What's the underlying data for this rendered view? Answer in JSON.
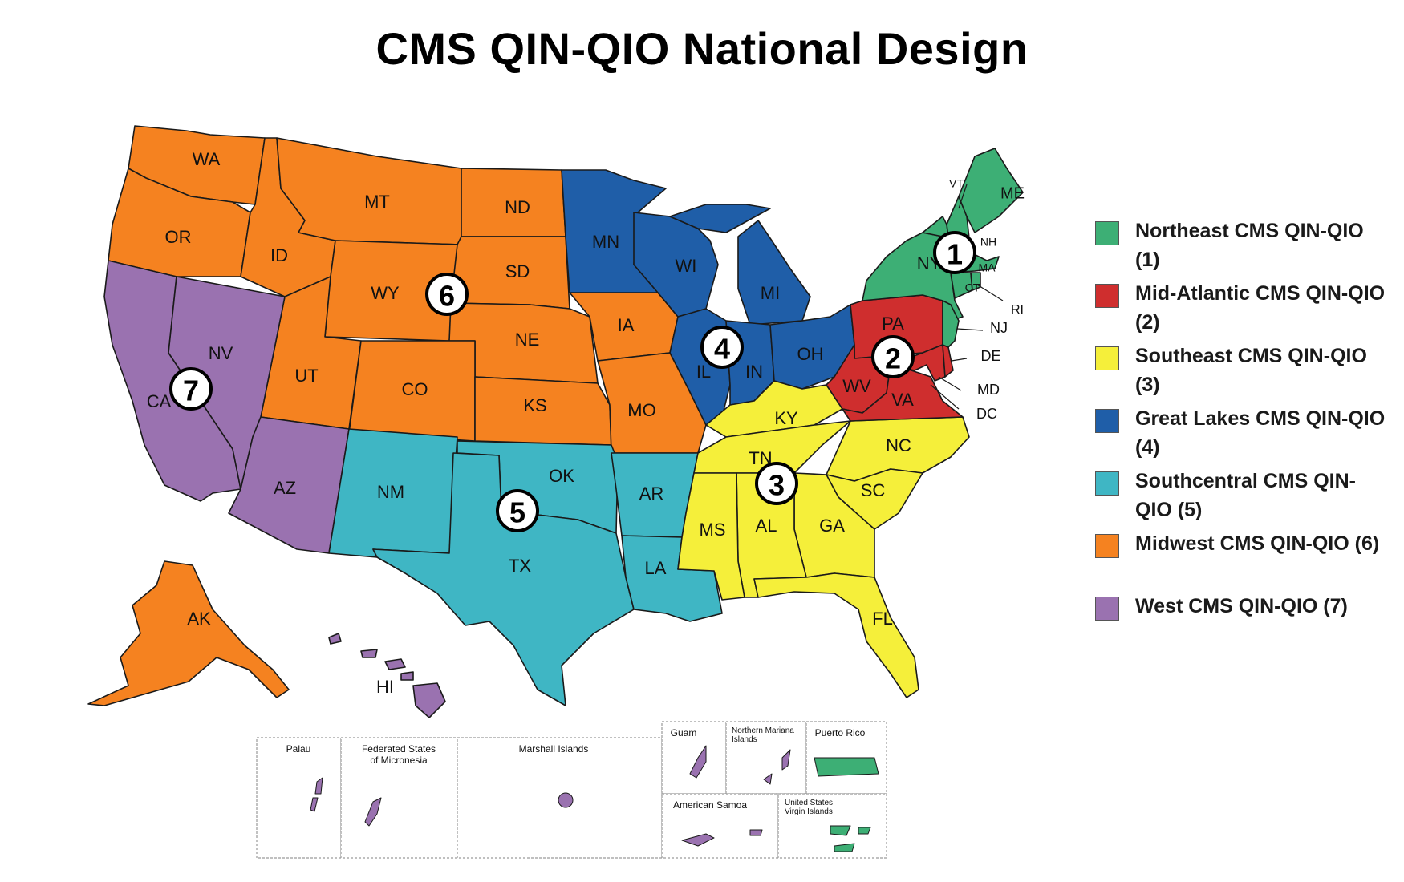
{
  "title": "CMS QIN-QIO National Design",
  "colors": {
    "region1": "#3daf75",
    "region2": "#cf2e2e",
    "region3": "#f5ef3a",
    "region4": "#1f5ea8",
    "region5": "#3fb6c4",
    "region6": "#f58220",
    "region7": "#9a72b0"
  },
  "legend": [
    {
      "label": "Northeast CMS QIN-QIO (1)",
      "color": "#3daf75"
    },
    {
      "label": "Mid-Atlantic CMS QIN-QIO (2)",
      "color": "#cf2e2e"
    },
    {
      "label": "Southeast CMS QIN-QIO (3)",
      "color": "#f5ef3a"
    },
    {
      "label": "Great Lakes CMS QIN-QIO (4)",
      "color": "#1f5ea8"
    },
    {
      "label": "Southcentral CMS QIN-QIO (5)",
      "color": "#3fb6c4"
    },
    {
      "label": "Midwest CMS QIN-QIO (6)",
      "color": "#f58220"
    },
    {
      "label": "West CMS QIN-QIO (7)",
      "color": "#9a72b0"
    }
  ],
  "region_badges": [
    "1",
    "2",
    "3",
    "4",
    "5",
    "6",
    "7"
  ],
  "states": {
    "WA": "WA",
    "OR": "OR",
    "ID": "ID",
    "MT": "MT",
    "WY": "WY",
    "ND": "ND",
    "SD": "SD",
    "NE": "NE",
    "UT": "UT",
    "CO": "CO",
    "KS": "KS",
    "MN": "MN",
    "IA": "IA",
    "MO": "MO",
    "WI": "WI",
    "MI": "MI",
    "IL": "IL",
    "IN": "IN",
    "OH": "OH",
    "KY": "KY",
    "TN": "TN",
    "NC": "NC",
    "SC": "SC",
    "GA": "GA",
    "AL": "AL",
    "MS": "MS",
    "FL": "FL",
    "AR": "AR",
    "LA": "LA",
    "OK": "OK",
    "TX": "TX",
    "NM": "NM",
    "AZ": "AZ",
    "NV": "NV",
    "CA": "CA",
    "AK": "AK",
    "HI": "HI",
    "PA": "PA",
    "WV": "WV",
    "VA": "VA",
    "DE": "DE",
    "MD": "MD",
    "DC": "DC",
    "NJ": "NJ",
    "NY": "NY",
    "VT": "VT",
    "NH": "NH",
    "ME": "ME",
    "MA": "MA",
    "CT": "CT",
    "RI": "RI"
  },
  "insets": {
    "palau": "Palau",
    "micronesia_1": "Federated States",
    "micronesia_2": "of Micronesia",
    "marshall": "Marshall Islands",
    "guam": "Guam",
    "nmi_1": "Northern Mariana",
    "nmi_2": "Islands",
    "puerto_rico": "Puerto Rico",
    "american_samoa": "American Samoa",
    "usvi_1": "United States",
    "usvi_2": "Virgin Islands"
  }
}
